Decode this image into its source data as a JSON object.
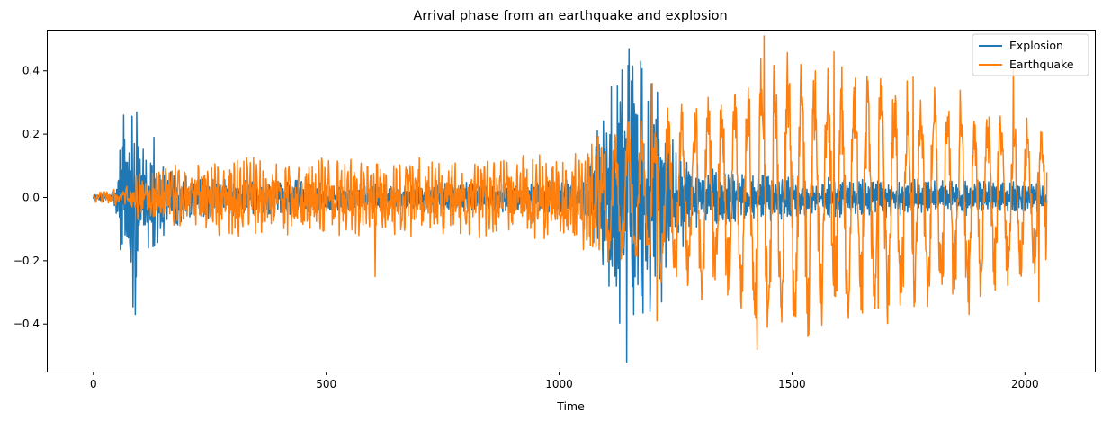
{
  "chart_data": {
    "type": "line",
    "title": "Arrival phase from an earthquake and explosion",
    "xlabel": "Time",
    "ylabel": "",
    "xlim": [
      -100,
      2150
    ],
    "ylim": [
      -0.55,
      0.53
    ],
    "xticks": [
      0,
      500,
      1000,
      1500,
      2000
    ],
    "yticks": [
      -0.4,
      -0.2,
      0.0,
      0.2,
      0.4
    ],
    "xtick_labels": [
      "0",
      "500",
      "1000",
      "1500",
      "2000"
    ],
    "ytick_labels": [
      "−0.4",
      "−0.2",
      "0.0",
      "0.2",
      "0.4"
    ],
    "grid": false,
    "legend": "top-right",
    "n_points": 2048,
    "series": [
      {
        "name": "Explosion",
        "color": "#1f77b4",
        "envelope": [
          [
            0,
            0.01
          ],
          [
            40,
            0.02
          ],
          [
            65,
            0.26
          ],
          [
            90,
            0.37
          ],
          [
            110,
            0.17
          ],
          [
            130,
            0.19
          ],
          [
            160,
            0.1
          ],
          [
            300,
            0.06
          ],
          [
            600,
            0.05
          ],
          [
            900,
            0.05
          ],
          [
            1050,
            0.06
          ],
          [
            1110,
            0.35
          ],
          [
            1150,
            0.52
          ],
          [
            1175,
            0.44
          ],
          [
            1210,
            0.36
          ],
          [
            1250,
            0.22
          ],
          [
            1300,
            0.1
          ],
          [
            1500,
            0.07
          ],
          [
            1800,
            0.06
          ],
          [
            2048,
            0.05
          ]
        ],
        "peaks": [
          [
            65,
            0.26
          ],
          [
            78,
            -0.14
          ],
          [
            88,
            0.17
          ],
          [
            90,
            -0.37
          ],
          [
            93,
            0.27
          ],
          [
            130,
            0.19
          ],
          [
            1145,
            -0.52
          ],
          [
            1150,
            0.47
          ],
          [
            1175,
            0.43
          ],
          [
            1195,
            -0.36
          ],
          [
            1220,
            -0.33
          ]
        ]
      },
      {
        "name": "Earthquake",
        "color": "#ff7f0e",
        "envelope": [
          [
            0,
            0.02
          ],
          [
            60,
            0.03
          ],
          [
            100,
            0.08
          ],
          [
            200,
            0.11
          ],
          [
            300,
            0.13
          ],
          [
            600,
            0.13
          ],
          [
            850,
            0.13
          ],
          [
            1000,
            0.14
          ],
          [
            1150,
            0.25
          ],
          [
            1250,
            0.3
          ],
          [
            1400,
            0.38
          ],
          [
            1440,
            0.5
          ],
          [
            1600,
            0.42
          ],
          [
            1800,
            0.38
          ],
          [
            2048,
            0.25
          ]
        ],
        "peaks": [
          [
            605,
            -0.25
          ],
          [
            1200,
            0.36
          ],
          [
            1210,
            -0.39
          ],
          [
            1425,
            -0.48
          ],
          [
            1440,
            0.51
          ],
          [
            1480,
            -0.26
          ],
          [
            1590,
            0.46
          ],
          [
            1685,
            -0.35
          ],
          [
            1760,
            0.38
          ],
          [
            1880,
            -0.37
          ],
          [
            1975,
            0.41
          ],
          [
            2030,
            -0.33
          ],
          [
            2048,
            0.08
          ]
        ]
      }
    ]
  }
}
